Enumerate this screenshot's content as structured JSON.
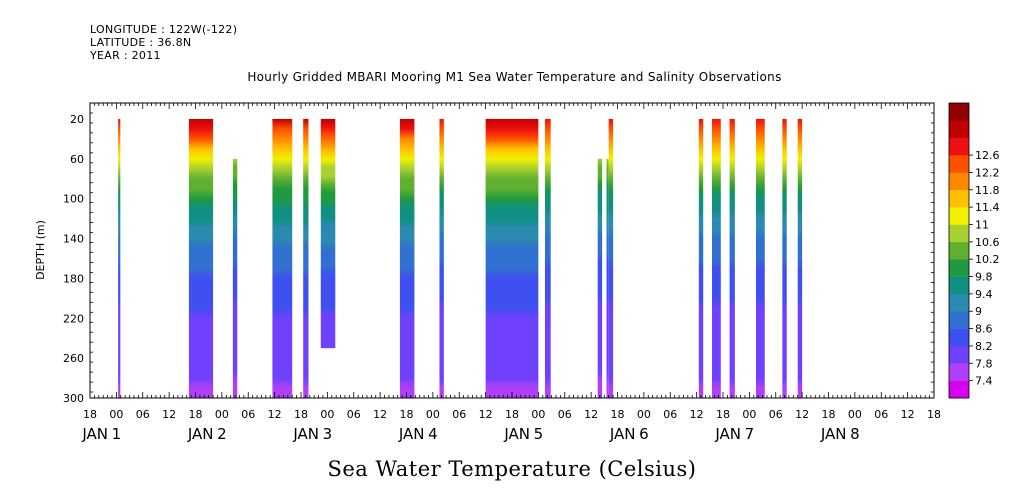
{
  "header": {
    "longitude": "LONGITUDE : 122W(-122)",
    "latitude": "LATITUDE : 36.8N",
    "year": "YEAR : 2011"
  },
  "chart_data": {
    "type": "heatmap",
    "title": "Hourly Gridded MBARI Mooring M1 Sea Water Temperature and Salinity Observations",
    "xlabel": "Sea Water Temperature (Celsius)",
    "ylabel": "DEPTH (m)",
    "x_range_hours": [
      -6,
      186
    ],
    "ylim": [
      300,
      4
    ],
    "y_reversed": true,
    "y_ticks": [
      20,
      60,
      100,
      140,
      180,
      220,
      260,
      300
    ],
    "x_tick_labels": [
      "18",
      "00",
      "06",
      "12",
      "18",
      "00",
      "06",
      "12",
      "18",
      "00",
      "06",
      "12",
      "18",
      "00",
      "06",
      "12",
      "18",
      "00",
      "06",
      "12",
      "18",
      "00",
      "06",
      "12",
      "18",
      "00",
      "06",
      "12",
      "18",
      "00",
      "06",
      "12",
      "18"
    ],
    "x_tick_hours": [
      -6,
      0,
      6,
      12,
      18,
      24,
      30,
      36,
      42,
      48,
      54,
      60,
      66,
      72,
      78,
      84,
      90,
      96,
      102,
      108,
      114,
      120,
      126,
      132,
      138,
      144,
      150,
      156,
      162,
      168,
      174,
      180,
      186
    ],
    "day_labels": [
      {
        "month": "JAN",
        "day": "1",
        "hour": 0
      },
      {
        "month": "JAN",
        "day": "2",
        "hour": 24
      },
      {
        "month": "JAN",
        "day": "3",
        "hour": 48
      },
      {
        "month": "JAN",
        "day": "4",
        "hour": 72
      },
      {
        "month": "JAN",
        "day": "5",
        "hour": 96
      },
      {
        "month": "JAN",
        "day": "6",
        "hour": 120
      },
      {
        "month": "JAN",
        "day": "7",
        "hour": 144
      },
      {
        "month": "JAN",
        "day": "8",
        "hour": 168
      }
    ],
    "colorbar": {
      "levels": [
        7.4,
        7.8,
        8.2,
        8.6,
        9,
        9.4,
        9.8,
        10.2,
        10.6,
        11,
        11.4,
        11.8,
        12.2,
        12.6
      ],
      "colors": [
        "#d800f0",
        "#b040f8",
        "#7040ff",
        "#4050f0",
        "#3070d0",
        "#2a8ab0",
        "#109080",
        "#209a40",
        "#60b030",
        "#a8d030",
        "#f0f000",
        "#ffc000",
        "#ff8800",
        "#ff5000",
        "#ee1010",
        "#c00000",
        "#900000"
      ]
    },
    "columns": [
      {
        "start": 0.4,
        "end": 0.9,
        "top": 20,
        "bottom": 300,
        "surface_temp": 12.2
      },
      {
        "start": 16.5,
        "end": 22,
        "top": 20,
        "bottom": 300,
        "surface_temp": 12.6
      },
      {
        "start": 26.5,
        "end": 27.5,
        "top": 60,
        "bottom": 300,
        "surface_temp": 12.0
      },
      {
        "start": 35.5,
        "end": 40,
        "top": 20,
        "bottom": 300,
        "surface_temp": 12.4
      },
      {
        "start": 42.5,
        "end": 43.7,
        "top": 20,
        "bottom": 300,
        "surface_temp": 12.4
      },
      {
        "start": 46.5,
        "end": 49.8,
        "top": 20,
        "bottom": 250,
        "surface_temp": 12.5
      },
      {
        "start": 64.5,
        "end": 67.8,
        "top": 20,
        "bottom": 300,
        "surface_temp": 12.5
      },
      {
        "start": 73.5,
        "end": 74.5,
        "top": 20,
        "bottom": 300,
        "surface_temp": 12.2
      },
      {
        "start": 84,
        "end": 96,
        "top": 20,
        "bottom": 300,
        "surface_temp": 12.6
      },
      {
        "start": 97.5,
        "end": 98.8,
        "top": 20,
        "bottom": 300,
        "surface_temp": 12.2
      },
      {
        "start": 109.5,
        "end": 110.5,
        "top": 60,
        "bottom": 300,
        "surface_temp": 11.9
      },
      {
        "start": 111.5,
        "end": 112,
        "top": 60,
        "bottom": 300,
        "surface_temp": 11.9
      },
      {
        "start": 112,
        "end": 113,
        "top": 20,
        "bottom": 300,
        "surface_temp": 12.2
      },
      {
        "start": 132.5,
        "end": 133.5,
        "top": 20,
        "bottom": 300,
        "surface_temp": 12.2
      },
      {
        "start": 135.5,
        "end": 137.5,
        "top": 20,
        "bottom": 300,
        "surface_temp": 12.2
      },
      {
        "start": 139.5,
        "end": 140.7,
        "top": 20,
        "bottom": 300,
        "surface_temp": 12.2
      },
      {
        "start": 145.5,
        "end": 147.5,
        "top": 20,
        "bottom": 300,
        "surface_temp": 12.2
      },
      {
        "start": 151.5,
        "end": 152.5,
        "top": 20,
        "bottom": 300,
        "surface_temp": 12.2
      },
      {
        "start": 155,
        "end": 156,
        "top": 20,
        "bottom": 300,
        "surface_temp": 12.2
      }
    ]
  }
}
